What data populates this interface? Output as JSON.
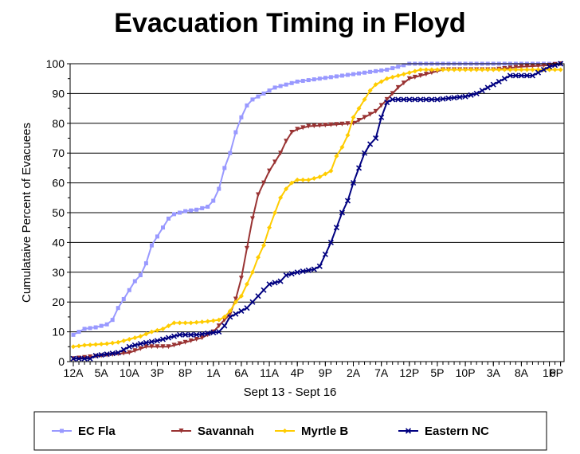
{
  "chart_data": {
    "type": "line",
    "title": "Evacuation Timing in Floyd",
    "xlabel": "Sept 13 - Sept 16",
    "ylabel": "Cumulataive Percent of Evacuees",
    "ylim": [
      0,
      100
    ],
    "yticks": [
      "0",
      "10",
      "20",
      "30",
      "40",
      "50",
      "60",
      "70",
      "80",
      "90",
      "100"
    ],
    "x_unit": "hours from 12A Sept 13",
    "xlim": [
      0,
      87
    ],
    "xticks": [
      {
        "x": 0,
        "label": "12A"
      },
      {
        "x": 5,
        "label": "5A"
      },
      {
        "x": 10,
        "label": "10A"
      },
      {
        "x": 15,
        "label": "3P"
      },
      {
        "x": 20,
        "label": "8P"
      },
      {
        "x": 25,
        "label": "1A"
      },
      {
        "x": 30,
        "label": "6A"
      },
      {
        "x": 35,
        "label": "11A"
      },
      {
        "x": 40,
        "label": "4P"
      },
      {
        "x": 45,
        "label": "9P"
      },
      {
        "x": 50,
        "label": "2A"
      },
      {
        "x": 55,
        "label": "7A"
      },
      {
        "x": 60,
        "label": "12P"
      },
      {
        "x": 65,
        "label": "5P"
      },
      {
        "x": 70,
        "label": "10P"
      },
      {
        "x": 75,
        "label": "3A"
      },
      {
        "x": 80,
        "label": "8A"
      },
      {
        "x": 85,
        "label": "1P"
      },
      {
        "x": 90,
        "label": "6P"
      }
    ],
    "grid": true,
    "legend": "bottom",
    "series": [
      {
        "name": "EC Fla",
        "color": "#9999ff",
        "marker": "square",
        "points": [
          [
            0,
            9
          ],
          [
            1,
            10
          ],
          [
            2,
            11
          ],
          [
            4,
            11.5
          ],
          [
            6,
            12.5
          ],
          [
            7,
            14
          ],
          [
            8,
            18
          ],
          [
            9,
            21
          ],
          [
            10,
            24
          ],
          [
            11,
            27
          ],
          [
            12,
            29
          ],
          [
            13,
            33
          ],
          [
            14,
            39
          ],
          [
            15,
            42
          ],
          [
            16,
            45
          ],
          [
            17,
            48
          ],
          [
            18,
            49.5
          ],
          [
            20,
            50.5
          ],
          [
            22,
            51
          ],
          [
            24,
            52
          ],
          [
            25,
            54
          ],
          [
            26,
            58
          ],
          [
            27,
            65
          ],
          [
            28,
            70
          ],
          [
            29,
            77
          ],
          [
            30,
            82
          ],
          [
            31,
            86
          ],
          [
            32,
            88
          ],
          [
            34,
            90
          ],
          [
            36,
            92
          ],
          [
            38,
            93
          ],
          [
            40,
            94
          ],
          [
            44,
            95
          ],
          [
            48,
            96
          ],
          [
            52,
            97
          ],
          [
            54,
            97.5
          ],
          [
            56,
            98
          ],
          [
            58,
            99
          ],
          [
            60,
            100
          ],
          [
            70,
            100
          ],
          [
            80,
            100
          ],
          [
            87,
            100
          ]
        ]
      },
      {
        "name": "Savannah",
        "color": "#993333",
        "marker": "triangle",
        "points": [
          [
            0,
            1
          ],
          [
            10,
            3
          ],
          [
            13,
            5
          ],
          [
            17,
            5
          ],
          [
            19,
            6
          ],
          [
            21,
            7
          ],
          [
            23,
            8
          ],
          [
            24,
            9
          ],
          [
            25,
            10
          ],
          [
            26,
            12
          ],
          [
            27,
            14
          ],
          [
            28,
            16
          ],
          [
            29,
            21
          ],
          [
            30,
            28
          ],
          [
            31,
            38
          ],
          [
            32,
            48
          ],
          [
            33,
            56
          ],
          [
            34,
            60
          ],
          [
            35,
            64
          ],
          [
            36,
            67
          ],
          [
            37,
            70
          ],
          [
            38,
            74
          ],
          [
            39,
            77
          ],
          [
            40,
            78
          ],
          [
            42,
            79
          ],
          [
            46,
            79.5
          ],
          [
            50,
            80
          ],
          [
            52,
            82
          ],
          [
            54,
            84
          ],
          [
            56,
            88
          ],
          [
            58,
            92
          ],
          [
            60,
            95
          ],
          [
            62,
            96
          ],
          [
            64,
            97
          ],
          [
            66,
            98
          ],
          [
            70,
            98
          ],
          [
            75,
            98
          ],
          [
            80,
            99
          ],
          [
            85,
            99.5
          ],
          [
            87,
            100
          ]
        ]
      },
      {
        "name": "Myrtle B",
        "color": "#ffcc00",
        "marker": "diamond",
        "points": [
          [
            0,
            5
          ],
          [
            2,
            5.5
          ],
          [
            6,
            6
          ],
          [
            8,
            6.5
          ],
          [
            10,
            7.5
          ],
          [
            12,
            8.5
          ],
          [
            14,
            10
          ],
          [
            16,
            11
          ],
          [
            18,
            13
          ],
          [
            21,
            13
          ],
          [
            24,
            13.5
          ],
          [
            26,
            14
          ],
          [
            27,
            15
          ],
          [
            28,
            17
          ],
          [
            29,
            20
          ],
          [
            30,
            22
          ],
          [
            31,
            26
          ],
          [
            32,
            30
          ],
          [
            33,
            35
          ],
          [
            34,
            39
          ],
          [
            35,
            45
          ],
          [
            36,
            50
          ],
          [
            37,
            55
          ],
          [
            38,
            58
          ],
          [
            39,
            60
          ],
          [
            40,
            61
          ],
          [
            42,
            61
          ],
          [
            44,
            62
          ],
          [
            45,
            63
          ],
          [
            46,
            64
          ],
          [
            47,
            69
          ],
          [
            48,
            72
          ],
          [
            49,
            76
          ],
          [
            50,
            82
          ],
          [
            51,
            85
          ],
          [
            52,
            88
          ],
          [
            53,
            91
          ],
          [
            54,
            93
          ],
          [
            56,
            95
          ],
          [
            58,
            96
          ],
          [
            60,
            97
          ],
          [
            62,
            98
          ],
          [
            70,
            98
          ],
          [
            80,
            98
          ],
          [
            87,
            98
          ]
        ]
      },
      {
        "name": "Eastern NC",
        "color": "#000080",
        "marker": "x",
        "points": [
          [
            0,
            1
          ],
          [
            3,
            1
          ],
          [
            4,
            2
          ],
          [
            8,
            3
          ],
          [
            9,
            4
          ],
          [
            10,
            5
          ],
          [
            12,
            6
          ],
          [
            15,
            7
          ],
          [
            17,
            8
          ],
          [
            19,
            9
          ],
          [
            22,
            9
          ],
          [
            26,
            10
          ],
          [
            27,
            12
          ],
          [
            28,
            15
          ],
          [
            29,
            16
          ],
          [
            30,
            17
          ],
          [
            31,
            18
          ],
          [
            32,
            20
          ],
          [
            33,
            22
          ],
          [
            34,
            24
          ],
          [
            35,
            26
          ],
          [
            37,
            27
          ],
          [
            38,
            29
          ],
          [
            40,
            30
          ],
          [
            43,
            31
          ],
          [
            44,
            32
          ],
          [
            45,
            36
          ],
          [
            46,
            40
          ],
          [
            47,
            45
          ],
          [
            48,
            50
          ],
          [
            49,
            54
          ],
          [
            50,
            60
          ],
          [
            51,
            65
          ],
          [
            52,
            70
          ],
          [
            53,
            73
          ],
          [
            54,
            75
          ],
          [
            55,
            82
          ],
          [
            56,
            87
          ],
          [
            57,
            88
          ],
          [
            60,
            88
          ],
          [
            65,
            88
          ],
          [
            70,
            89
          ],
          [
            72,
            90
          ],
          [
            74,
            92
          ],
          [
            76,
            94
          ],
          [
            78,
            96
          ],
          [
            82,
            96
          ],
          [
            84,
            98
          ],
          [
            85,
            99
          ],
          [
            87,
            100
          ]
        ]
      }
    ]
  }
}
